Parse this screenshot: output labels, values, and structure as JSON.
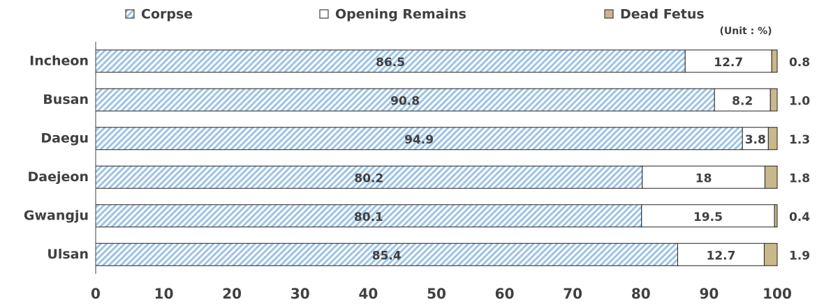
{
  "chart_data": {
    "type": "stacked_bar_horizontal",
    "subtitle": "(Unit : %)",
    "categories": [
      "Incheon",
      "Busan",
      "Daegu",
      "Daejeon",
      "Gwangju",
      "Ulsan"
    ],
    "series": [
      {
        "name": "Corpse",
        "color": "#9dc3e6",
        "hatch": true,
        "values": [
          86.5,
          90.8,
          94.9,
          80.2,
          80.1,
          85.4
        ],
        "value_labels": [
          "86.5",
          "90.8",
          "94.9",
          "80.2",
          "80.1",
          "85.4"
        ]
      },
      {
        "name": "Opening Remains",
        "color": "#ffffff",
        "values": [
          12.7,
          8.2,
          3.8,
          18,
          19.5,
          12.7
        ],
        "value_labels": [
          "12.7",
          "8.2",
          "3.8",
          "18",
          "19.5",
          "12.7"
        ]
      },
      {
        "name": "Dead Fetus",
        "color": "#c8b88a",
        "values": [
          0.8,
          1.0,
          1.3,
          1.8,
          0.4,
          1.9
        ],
        "value_labels": [
          "0.8",
          "1.0",
          "1.3",
          "1.8",
          "0.4",
          "1.9"
        ]
      }
    ],
    "xlim": [
      0,
      100
    ],
    "xticks": [
      0,
      10,
      20,
      30,
      40,
      50,
      60,
      70,
      80,
      90,
      100
    ]
  }
}
